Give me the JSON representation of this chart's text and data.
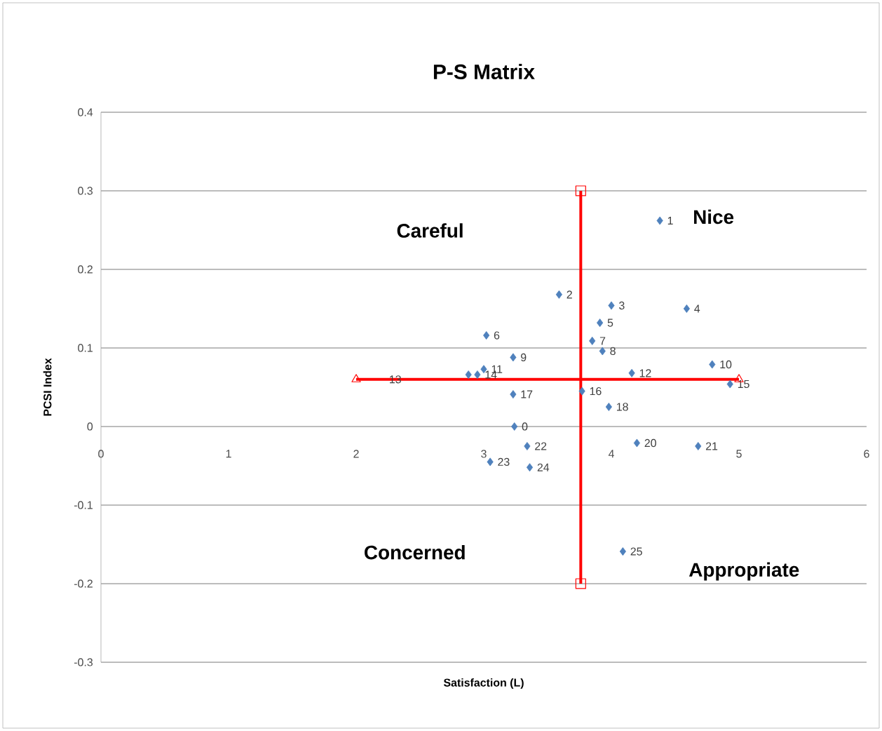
{
  "chart_data": {
    "type": "scatter",
    "title": "P-S Matrix",
    "xlabel": "Satisfaction  (L)",
    "ylabel": "PCSI Index",
    "xlim": [
      0,
      6
    ],
    "ylim": [
      -0.3,
      0.4
    ],
    "xticks": [
      0,
      1,
      2,
      3,
      4,
      5,
      6
    ],
    "yticks": [
      -0.3,
      -0.2,
      -0.1,
      0,
      0.1,
      0.2,
      0.3,
      0.4
    ],
    "grid": "y",
    "series": [
      {
        "color": "#4f81bd",
        "marker": "diamond",
        "x": [
          4.38,
          3.59,
          4.0,
          4.59,
          3.91,
          3.02,
          3.85,
          3.93,
          3.23,
          4.79,
          3.0,
          4.16,
          2.88,
          2.95,
          4.93,
          3.77,
          3.23,
          3.98,
          3.24,
          4.2,
          4.68,
          3.34,
          3.05,
          3.36,
          4.09
        ],
        "values": [
          0.262,
          0.168,
          0.154,
          0.15,
          0.132,
          0.116,
          0.109,
          0.096,
          0.088,
          0.079,
          0.073,
          0.068,
          0.066,
          0.066,
          0.054,
          0.045,
          0.041,
          0.025,
          0.0,
          -0.021,
          -0.025,
          -0.025,
          -0.045,
          -0.052,
          -0.159
        ]
      },
      {
        "type": "line",
        "color": "#ff0000",
        "marker": "square",
        "x": [
          3.76,
          3.76
        ],
        "values": [
          0.3,
          -0.2
        ]
      },
      {
        "type": "line",
        "color": "#ff0000",
        "marker": "triangle",
        "x": [
          2,
          5
        ],
        "values": [
          0.06,
          0.06
        ]
      }
    ],
    "annotations": [
      "Careful",
      "Nice",
      "Concerned",
      "Appropriate",
      {
        "text": "13",
        "x": 2.2,
        "y": 0.06
      },
      {
        "text": "1",
        "x": 4.38,
        "y": 0.262
      },
      {
        "text": "2",
        "x": 3.59,
        "y": 0.168
      },
      {
        "text": "3",
        "x": 4.0,
        "y": 0.154
      },
      {
        "text": "4",
        "x": 4.59,
        "y": 0.15
      },
      {
        "text": "5",
        "x": 3.91,
        "y": 0.132
      },
      {
        "text": "6",
        "x": 3.02,
        "y": 0.116
      },
      {
        "text": "7",
        "x": 3.85,
        "y": 0.109
      },
      {
        "text": "8",
        "x": 3.93,
        "y": 0.096
      },
      {
        "text": "9",
        "x": 3.23,
        "y": 0.088
      },
      {
        "text": "10",
        "x": 4.79,
        "y": 0.079
      },
      {
        "text": "11",
        "x": 3.0,
        "y": 0.073
      },
      {
        "text": "12",
        "x": 4.16,
        "y": 0.068
      },
      {
        "text": "14",
        "x": 2.95,
        "y": 0.066
      },
      {
        "text": "15",
        "x": 4.93,
        "y": 0.054
      },
      {
        "text": "16",
        "x": 3.77,
        "y": 0.045
      },
      {
        "text": "17",
        "x": 3.23,
        "y": 0.041
      },
      {
        "text": "18",
        "x": 3.98,
        "y": 0.025
      },
      {
        "text": "0",
        "x": 3.24,
        "y": 0.0
      },
      {
        "text": "20",
        "x": 4.2,
        "y": -0.021
      },
      {
        "text": "21",
        "x": 4.68,
        "y": -0.025
      },
      {
        "text": "22",
        "x": 3.34,
        "y": -0.025
      },
      {
        "text": "23",
        "x": 3.05,
        "y": -0.045
      },
      {
        "text": "24",
        "x": 3.36,
        "y": -0.052
      },
      {
        "text": "25",
        "x": 4.09,
        "y": -0.159
      }
    ]
  }
}
